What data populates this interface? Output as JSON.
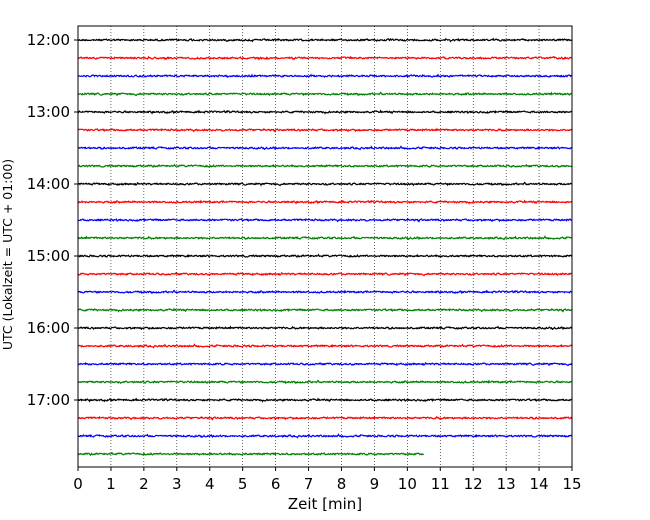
{
  "chart_data": {
    "type": "line",
    "title": "",
    "xlabel": "Zeit  [min]",
    "ylabel": "UTC (Lokalzeit = UTC + 01:00)",
    "xlim": [
      0,
      15
    ],
    "x_ticks": [
      0,
      1,
      2,
      3,
      4,
      5,
      6,
      7,
      8,
      9,
      10,
      11,
      12,
      13,
      14,
      15
    ],
    "y_ticks": [
      "12:00",
      "13:00",
      "14:00",
      "15:00",
      "16:00",
      "17:00"
    ],
    "grid": "vertical dotted",
    "legend": "none",
    "colors": [
      "#000000",
      "#ff0000",
      "#0000ff",
      "#008000"
    ],
    "series": [
      {
        "start": "12:00",
        "x": [
          0,
          15
        ],
        "color": "#000000"
      },
      {
        "start": "12:15",
        "x": [
          0,
          15
        ],
        "color": "#ff0000"
      },
      {
        "start": "12:30",
        "x": [
          0,
          15
        ],
        "color": "#0000ff"
      },
      {
        "start": "12:45",
        "x": [
          0,
          15
        ],
        "color": "#008000"
      },
      {
        "start": "13:00",
        "x": [
          0,
          15
        ],
        "color": "#000000"
      },
      {
        "start": "13:15",
        "x": [
          0,
          15
        ],
        "color": "#ff0000"
      },
      {
        "start": "13:30",
        "x": [
          0,
          15
        ],
        "color": "#0000ff"
      },
      {
        "start": "13:45",
        "x": [
          0,
          15
        ],
        "color": "#008000"
      },
      {
        "start": "14:00",
        "x": [
          0,
          15
        ],
        "color": "#000000"
      },
      {
        "start": "14:15",
        "x": [
          0,
          15
        ],
        "color": "#ff0000"
      },
      {
        "start": "14:30",
        "x": [
          0,
          15
        ],
        "color": "#0000ff"
      },
      {
        "start": "14:45",
        "x": [
          0,
          15
        ],
        "color": "#008000"
      },
      {
        "start": "15:00",
        "x": [
          0,
          15
        ],
        "color": "#000000"
      },
      {
        "start": "15:15",
        "x": [
          0,
          15
        ],
        "color": "#ff0000"
      },
      {
        "start": "15:30",
        "x": [
          0,
          15
        ],
        "color": "#0000ff"
      },
      {
        "start": "15:45",
        "x": [
          0,
          15
        ],
        "color": "#008000"
      },
      {
        "start": "16:00",
        "x": [
          0,
          15
        ],
        "color": "#000000"
      },
      {
        "start": "16:15",
        "x": [
          0,
          15
        ],
        "color": "#ff0000"
      },
      {
        "start": "16:30",
        "x": [
          0,
          15
        ],
        "color": "#0000ff"
      },
      {
        "start": "16:45",
        "x": [
          0,
          15
        ],
        "color": "#008000"
      },
      {
        "start": "17:00",
        "x": [
          0,
          15
        ],
        "color": "#000000"
      },
      {
        "start": "17:15",
        "x": [
          0,
          15
        ],
        "color": "#ff0000"
      },
      {
        "start": "17:30",
        "x": [
          0,
          15
        ],
        "color": "#0000ff"
      },
      {
        "start": "17:45",
        "x": [
          0,
          10.5
        ],
        "color": "#008000"
      }
    ]
  }
}
